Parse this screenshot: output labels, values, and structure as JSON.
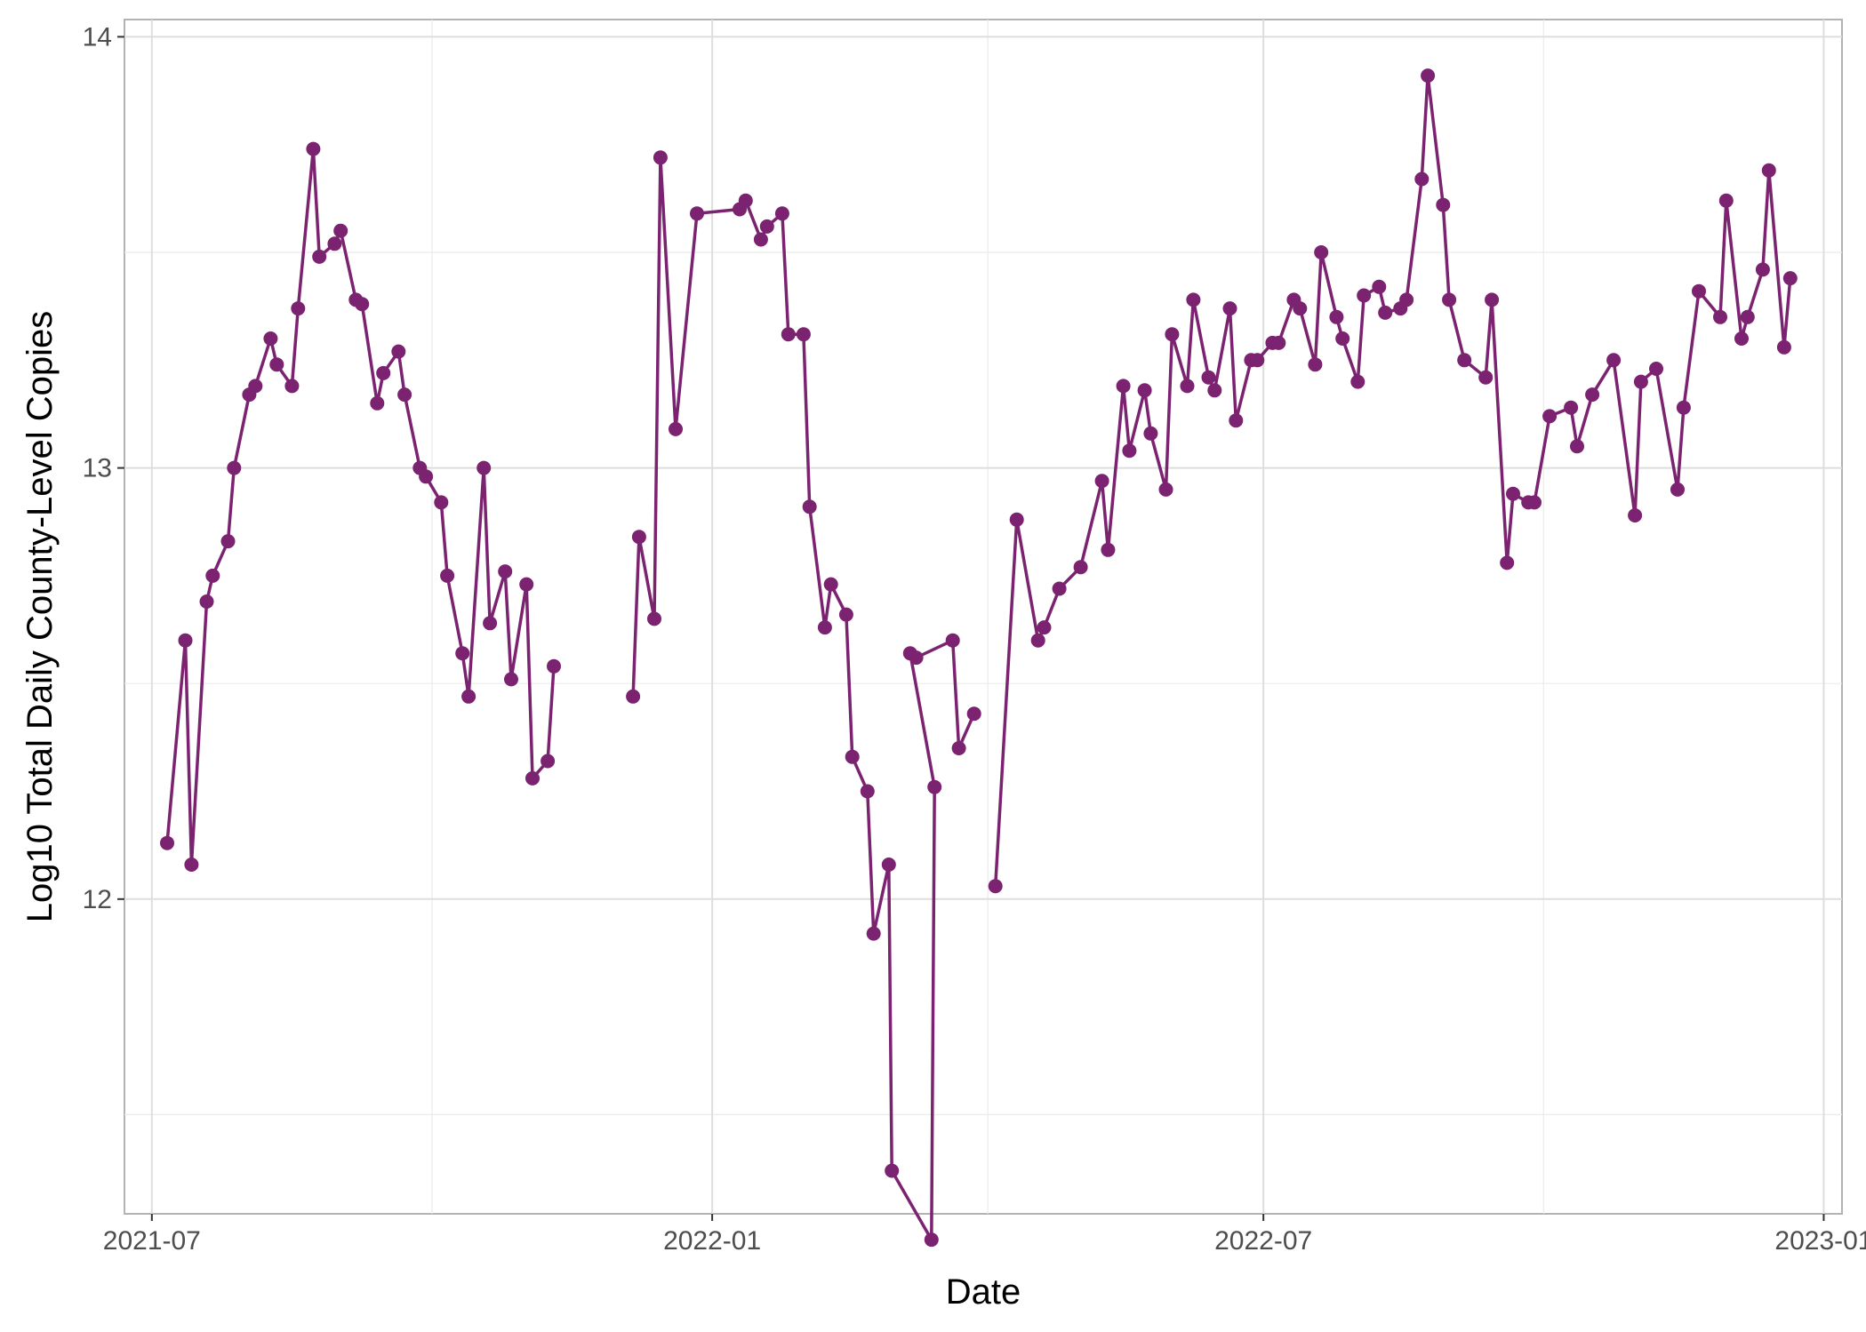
{
  "chart_data": {
    "type": "line",
    "title": "",
    "xlabel": "Date",
    "ylabel": "Log10 Total Daily County-Level Copies",
    "x_axis_type": "date",
    "xlim": [
      "2021-06-22",
      "2023-01-07"
    ],
    "ylim": [
      11.27,
      14.04
    ],
    "x_ticks": [
      {
        "date": "2021-07-01",
        "label": "2021-07"
      },
      {
        "date": "2022-01-01",
        "label": "2022-01"
      },
      {
        "date": "2022-07-01",
        "label": "2022-07"
      },
      {
        "date": "2023-01-01",
        "label": "2023-01"
      }
    ],
    "y_ticks": [
      12,
      13,
      14
    ],
    "grid": true,
    "legend": "none",
    "series": [
      {
        "color": "#7b2270",
        "segments": [
          [
            [
              "2021-07-06",
              12.13
            ],
            [
              "2021-07-12",
              12.6
            ],
            [
              "2021-07-14",
              12.08
            ],
            [
              "2021-07-19",
              12.69
            ],
            [
              "2021-07-21",
              12.75
            ],
            [
              "2021-07-26",
              12.83
            ],
            [
              "2021-07-28",
              13.0
            ],
            [
              "2021-08-02",
              13.17
            ],
            [
              "2021-08-04",
              13.19
            ],
            [
              "2021-08-09",
              13.3
            ],
            [
              "2021-08-11",
              13.24
            ],
            [
              "2021-08-16",
              13.19
            ],
            [
              "2021-08-18",
              13.37
            ],
            [
              "2021-08-23",
              13.74
            ],
            [
              "2021-08-25",
              13.49
            ],
            [
              "2021-08-30",
              13.52
            ],
            [
              "2021-09-01",
              13.55
            ],
            [
              "2021-09-06",
              13.39
            ],
            [
              "2021-09-08",
              13.38
            ],
            [
              "2021-09-13",
              13.15
            ],
            [
              "2021-09-15",
              13.22
            ],
            [
              "2021-09-20",
              13.27
            ],
            [
              "2021-09-22",
              13.17
            ],
            [
              "2021-09-27",
              13.0
            ],
            [
              "2021-09-29",
              12.98
            ],
            [
              "2021-10-04",
              12.92
            ],
            [
              "2021-10-06",
              12.75
            ],
            [
              "2021-10-11",
              12.57
            ],
            [
              "2021-10-13",
              12.47
            ],
            [
              "2021-10-18",
              13.0
            ],
            [
              "2021-10-20",
              12.64
            ],
            [
              "2021-10-25",
              12.76
            ],
            [
              "2021-10-27",
              12.51
            ],
            [
              "2021-11-01",
              12.73
            ],
            [
              "2021-11-03",
              12.28
            ],
            [
              "2021-11-08",
              12.32
            ],
            [
              "2021-11-10",
              12.54
            ]
          ],
          [
            [
              "2021-12-06",
              12.47
            ],
            [
              "2021-12-08",
              12.84
            ],
            [
              "2021-12-13",
              12.65
            ],
            [
              "2021-12-15",
              13.72
            ],
            [
              "2021-12-20",
              13.09
            ],
            [
              "2021-12-27",
              13.59
            ],
            [
              "2022-01-10",
              13.6
            ],
            [
              "2022-01-12",
              13.62
            ],
            [
              "2022-01-17",
              13.53
            ],
            [
              "2022-01-19",
              13.56
            ],
            [
              "2022-01-24",
              13.59
            ],
            [
              "2022-01-26",
              13.31
            ],
            [
              "2022-01-31",
              13.31
            ],
            [
              "2022-02-02",
              12.91
            ],
            [
              "2022-02-07",
              12.63
            ],
            [
              "2022-02-09",
              12.73
            ],
            [
              "2022-02-14",
              12.66
            ],
            [
              "2022-02-16",
              12.33
            ],
            [
              "2022-02-21",
              12.25
            ],
            [
              "2022-02-23",
              11.92
            ],
            [
              "2022-02-28",
              12.08
            ],
            [
              "2022-03-01",
              11.37
            ],
            [
              "2022-03-14",
              11.21
            ],
            [
              "2022-03-15",
              12.26
            ],
            [
              "2022-03-07",
              12.57
            ],
            [
              "2022-03-09",
              12.56
            ],
            [
              "2022-03-21",
              12.6
            ],
            [
              "2022-03-23",
              12.35
            ],
            [
              "2022-03-28",
              12.43
            ]
          ],
          [
            [
              "2022-04-04",
              12.03
            ],
            [
              "2022-04-11",
              12.88
            ],
            [
              "2022-04-18",
              12.6
            ],
            [
              "2022-04-20",
              12.63
            ],
            [
              "2022-04-25",
              12.72
            ],
            [
              "2022-05-02",
              12.77
            ],
            [
              "2022-05-09",
              12.97
            ],
            [
              "2022-05-11",
              12.81
            ],
            [
              "2022-05-16",
              13.19
            ],
            [
              "2022-05-18",
              13.04
            ],
            [
              "2022-05-23",
              13.18
            ],
            [
              "2022-05-25",
              13.08
            ],
            [
              "2022-05-30",
              12.95
            ],
            [
              "2022-06-01",
              13.31
            ],
            [
              "2022-06-06",
              13.19
            ],
            [
              "2022-06-08",
              13.39
            ],
            [
              "2022-06-13",
              13.21
            ],
            [
              "2022-06-15",
              13.18
            ],
            [
              "2022-06-20",
              13.37
            ],
            [
              "2022-06-22",
              13.11
            ],
            [
              "2022-06-27",
              13.25
            ],
            [
              "2022-06-29",
              13.25
            ],
            [
              "2022-07-04",
              13.29
            ],
            [
              "2022-07-06",
              13.29
            ],
            [
              "2022-07-11",
              13.39
            ],
            [
              "2022-07-13",
              13.37
            ],
            [
              "2022-07-18",
              13.24
            ],
            [
              "2022-07-20",
              13.5
            ],
            [
              "2022-07-25",
              13.35
            ],
            [
              "2022-07-27",
              13.3
            ],
            [
              "2022-08-01",
              13.2
            ],
            [
              "2022-08-03",
              13.4
            ],
            [
              "2022-08-08",
              13.42
            ],
            [
              "2022-08-10",
              13.36
            ],
            [
              "2022-08-15",
              13.37
            ],
            [
              "2022-08-17",
              13.39
            ],
            [
              "2022-08-22",
              13.67
            ],
            [
              "2022-08-24",
              13.91
            ],
            [
              "2022-08-29",
              13.61
            ],
            [
              "2022-08-31",
              13.39
            ],
            [
              "2022-09-05",
              13.25
            ],
            [
              "2022-09-12",
              13.21
            ],
            [
              "2022-09-14",
              13.39
            ],
            [
              "2022-09-19",
              12.78
            ],
            [
              "2022-09-21",
              12.94
            ],
            [
              "2022-09-26",
              12.92
            ],
            [
              "2022-09-28",
              12.92
            ],
            [
              "2022-10-03",
              13.12
            ],
            [
              "2022-10-10",
              13.14
            ],
            [
              "2022-10-12",
              13.05
            ],
            [
              "2022-10-17",
              13.17
            ],
            [
              "2022-10-24",
              13.25
            ],
            [
              "2022-10-31",
              12.89
            ],
            [
              "2022-11-02",
              13.2
            ],
            [
              "2022-11-07",
              13.23
            ],
            [
              "2022-11-14",
              12.95
            ],
            [
              "2022-11-16",
              13.14
            ],
            [
              "2022-11-21",
              13.41
            ],
            [
              "2022-11-28",
              13.35
            ],
            [
              "2022-11-30",
              13.62
            ],
            [
              "2022-12-05",
              13.3
            ],
            [
              "2022-12-07",
              13.35
            ],
            [
              "2022-12-12",
              13.46
            ],
            [
              "2022-12-14",
              13.69
            ],
            [
              "2022-12-19",
              13.28
            ],
            [
              "2022-12-21",
              13.44
            ]
          ]
        ]
      }
    ]
  }
}
